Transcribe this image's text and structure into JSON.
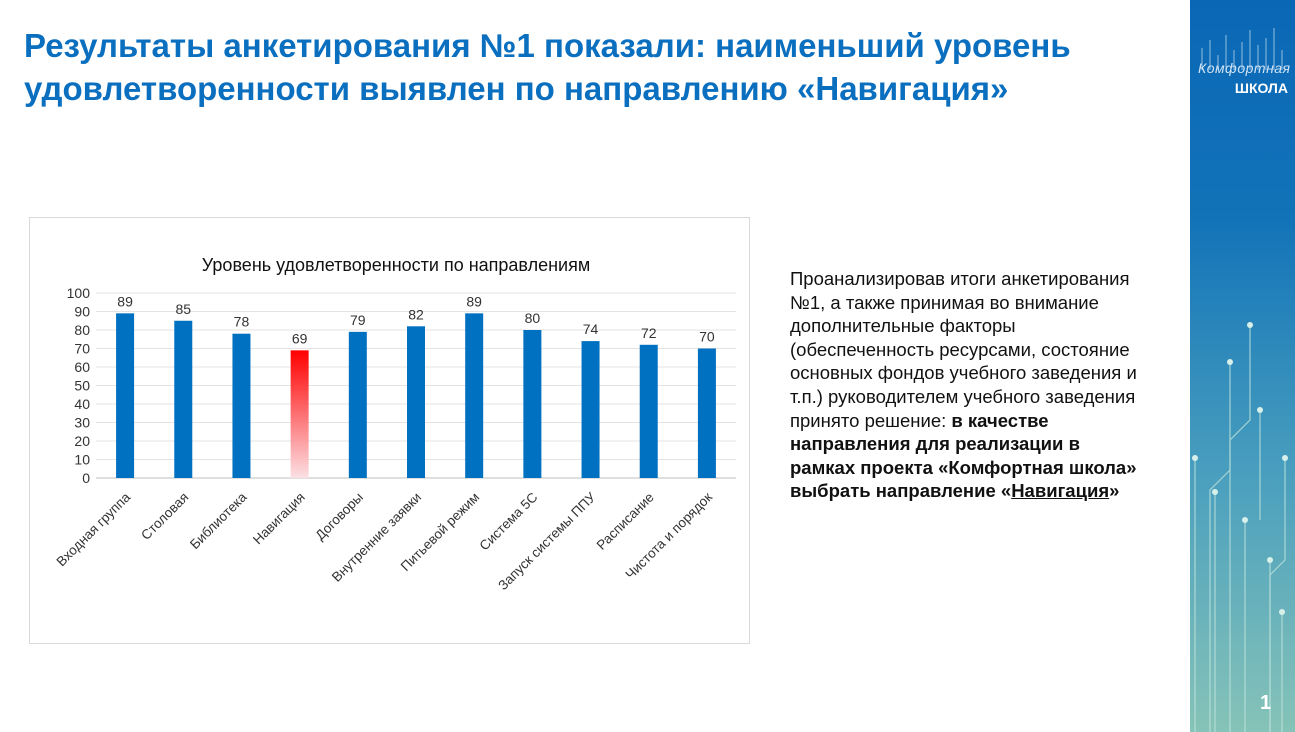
{
  "title": "Результаты анкетирования №1 показали: наименьший уровень удовлетворенности выявлен по направлению «Навигация»",
  "side_text": {
    "normal": "Проанализировав итоги анкетирования №1, а также принимая во внимание дополнительные факторы (обеспеченность ресурсами, состояние основных фондов учебного заведения и т.п.) руководителем учебного заведения принято решение:",
    "bold": "в качестве направления для реализации в рамках проекта «Комфортная школа» выбрать направление «",
    "underlined": "Навигация",
    "bold_end": "»"
  },
  "brand": {
    "logo_top": "Комфортная",
    "logo_bottom": "школа"
  },
  "page_number": "1",
  "colors": {
    "bar": "#0070c0",
    "highlight_top": "#ff0000",
    "highlight_bottom": "#fbe0e4",
    "title": "#0b6fbf"
  },
  "chart_data": {
    "type": "bar",
    "title": "Уровень удовлетворенности по направлениям",
    "categories": [
      "Входная группа",
      "Столовая",
      "Библиотека",
      "Навигация",
      "Договоры",
      "Внутренние заявки",
      "Питьевой режим",
      "Система 5С",
      "Запуск системы ППУ",
      "Расписание",
      "Чистота и порядок"
    ],
    "values": [
      89,
      85,
      78,
      69,
      79,
      82,
      89,
      80,
      74,
      72,
      70
    ],
    "highlight_index": 3,
    "ylim": [
      0,
      100
    ],
    "yticks": [
      0,
      10,
      20,
      30,
      40,
      50,
      60,
      70,
      80,
      90,
      100
    ],
    "grid": true,
    "xlabel": "",
    "ylabel": ""
  }
}
